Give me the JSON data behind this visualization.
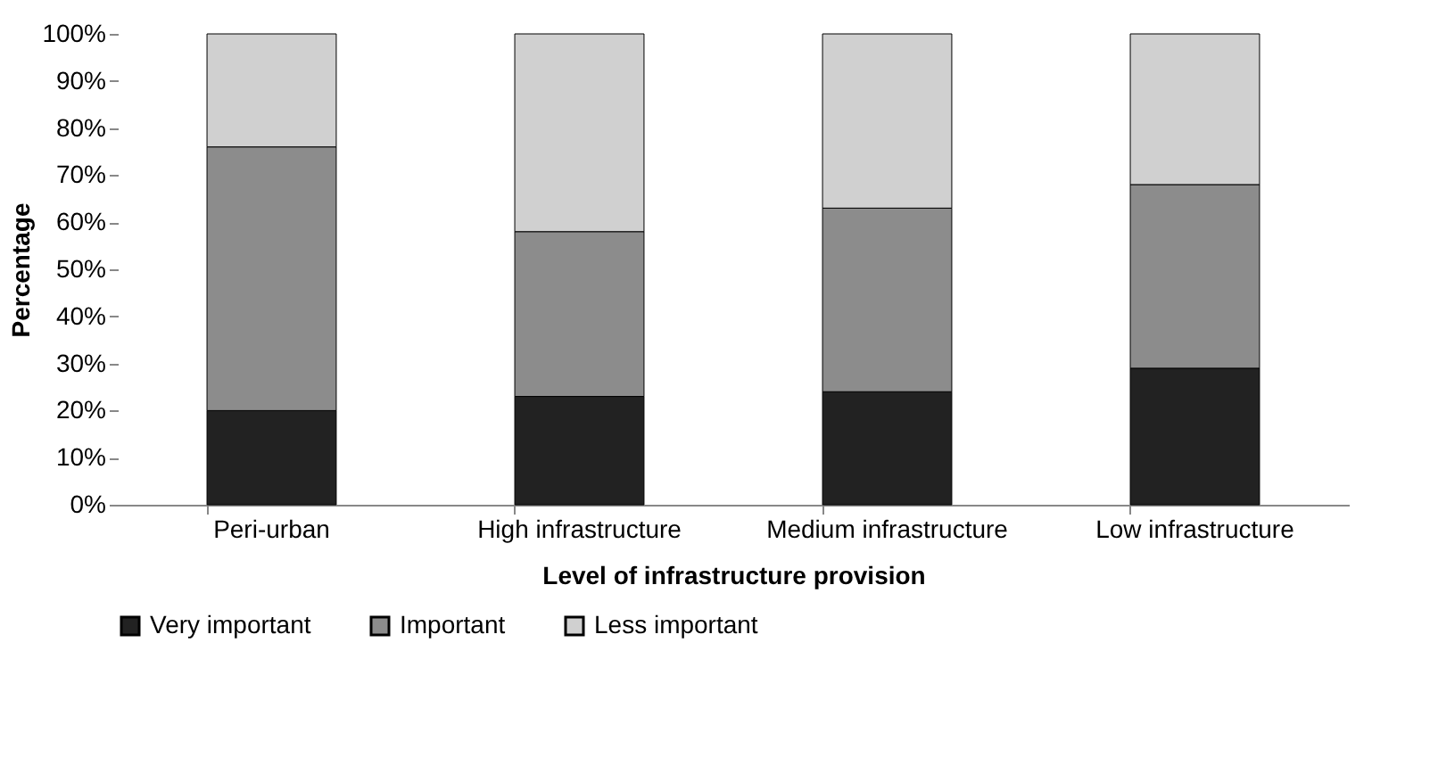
{
  "chart_data": {
    "type": "bar",
    "stacked": true,
    "xlabel": "Level of infrastructure provision",
    "ylabel": "Percentage",
    "categories": [
      "Peri-urban",
      "High infrastructure",
      "Medium infrastructure",
      "Low infrastructure"
    ],
    "series": [
      {
        "name": "Very important",
        "color": "#222222",
        "values": [
          20,
          23,
          24,
          29
        ]
      },
      {
        "name": "Important",
        "color": "#8c8c8c",
        "values": [
          56,
          35,
          39,
          39
        ]
      },
      {
        "name": "Less important",
        "color": "#d0d0d0",
        "values": [
          24,
          42,
          37,
          32
        ]
      }
    ],
    "ylim": [
      0,
      100
    ],
    "yticks": [
      {
        "value": 0,
        "label": "0%"
      },
      {
        "value": 10,
        "label": "10%"
      },
      {
        "value": 20,
        "label": "20%"
      },
      {
        "value": 30,
        "label": "30%"
      },
      {
        "value": 40,
        "label": "40%"
      },
      {
        "value": 50,
        "label": "50%"
      },
      {
        "value": 60,
        "label": "60%"
      },
      {
        "value": 70,
        "label": "70%"
      },
      {
        "value": 80,
        "label": "80%"
      },
      {
        "value": 90,
        "label": "90%"
      },
      {
        "value": 100,
        "label": "100%"
      }
    ],
    "grid": false,
    "legend": "bottom"
  }
}
